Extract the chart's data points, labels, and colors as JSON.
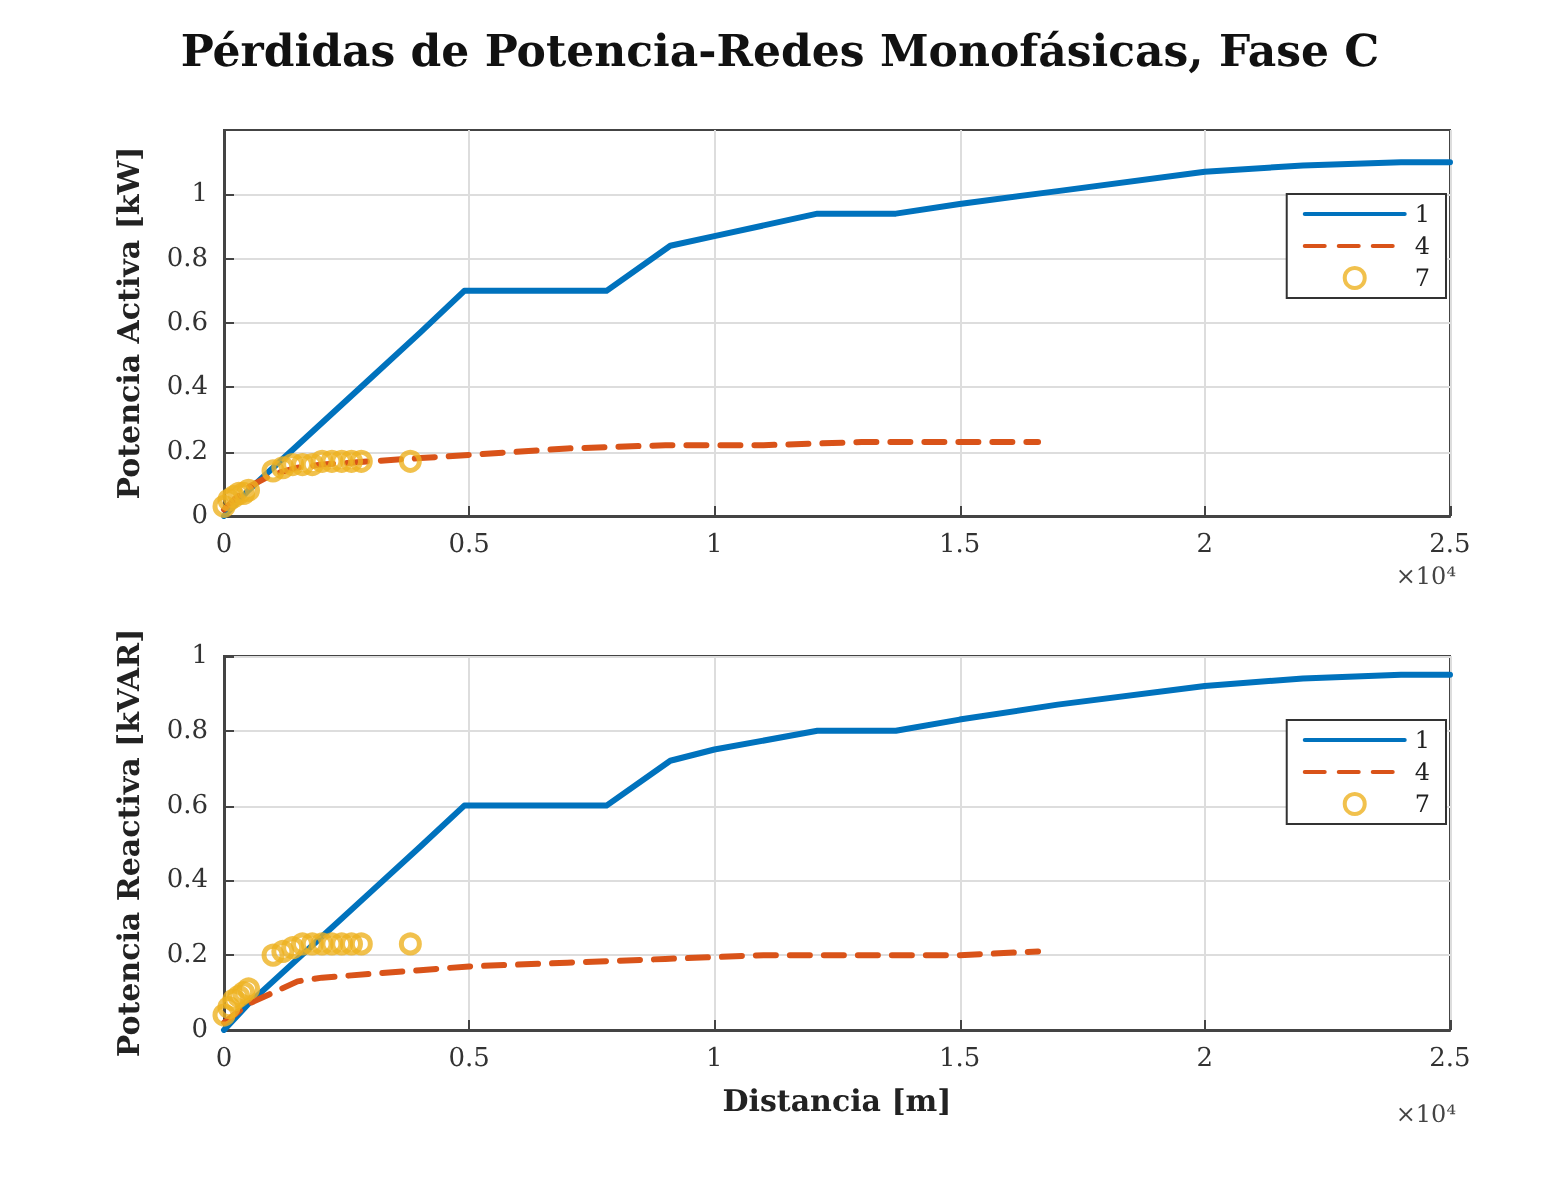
{
  "chart_data": [
    {
      "type": "line",
      "title": "Pérdidas de Potencia-Redes Monofásicas, Fase C",
      "ylabel": "Potencia Activa [kW]",
      "annotations": [
        "×10⁴"
      ],
      "xlim": [
        0,
        2.5
      ],
      "xticks": [
        0,
        0.5,
        1,
        1.5,
        2,
        2.5
      ],
      "ylim": [
        0,
        1.2
      ],
      "yticks": [
        0,
        0.2,
        0.4,
        0.6,
        0.8,
        1
      ],
      "grid": true,
      "legend": "top right",
      "series": [
        {
          "name": "1",
          "color": "#0072bd",
          "line_style": "solid",
          "x": [
            0,
            0.05,
            0.1,
            0.2,
            0.3,
            0.4,
            0.49,
            0.78,
            0.91,
            1,
            1.21,
            1.37,
            1.5,
            1.7,
            2,
            2.2,
            2.4,
            2.5
          ],
          "values": [
            0,
            0.08,
            0.15,
            0.29,
            0.43,
            0.57,
            0.7,
            0.7,
            0.84,
            0.87,
            0.94,
            0.94,
            0.97,
            1.01,
            1.07,
            1.09,
            1.1,
            1.1
          ]
        },
        {
          "name": "4",
          "color": "#d95319",
          "line_style": "dashed",
          "x": [
            0,
            0.02,
            0.05,
            0.1,
            0.15,
            0.2,
            0.3,
            0.4,
            0.5,
            0.7,
            0.9,
            1.1,
            1.3,
            1.5,
            1.66
          ],
          "values": [
            0.02,
            0.05,
            0.09,
            0.13,
            0.15,
            0.16,
            0.17,
            0.18,
            0.19,
            0.21,
            0.22,
            0.22,
            0.23,
            0.23,
            0.23
          ]
        },
        {
          "name": "7",
          "type": "scatter",
          "color": "#edb120",
          "marker": "circle",
          "x": [
            0,
            0.01,
            0.02,
            0.03,
            0.04,
            0.05,
            0.1,
            0.12,
            0.14,
            0.16,
            0.18,
            0.2,
            0.22,
            0.24,
            0.26,
            0.28,
            0.38
          ],
          "values": [
            0.03,
            0.05,
            0.06,
            0.07,
            0.07,
            0.08,
            0.14,
            0.15,
            0.16,
            0.16,
            0.16,
            0.17,
            0.17,
            0.17,
            0.17,
            0.17,
            0.17
          ]
        }
      ]
    },
    {
      "type": "line",
      "xlabel": "Distancia [m]",
      "ylabel": "Potencia Reactiva [kVAR]",
      "annotations": [
        "×10⁴"
      ],
      "xlim": [
        0,
        2.5
      ],
      "xticks": [
        0,
        0.5,
        1,
        1.5,
        2,
        2.5
      ],
      "ylim": [
        0,
        1
      ],
      "yticks": [
        0,
        0.2,
        0.4,
        0.6,
        0.8,
        1
      ],
      "grid": true,
      "legend": "top right",
      "series": [
        {
          "name": "1",
          "color": "#0072bd",
          "line_style": "solid",
          "x": [
            0,
            0.05,
            0.1,
            0.2,
            0.3,
            0.4,
            0.49,
            0.78,
            0.91,
            1,
            1.21,
            1.37,
            1.5,
            1.7,
            2,
            2.2,
            2.4,
            2.5
          ],
          "values": [
            0,
            0.07,
            0.13,
            0.25,
            0.37,
            0.49,
            0.6,
            0.6,
            0.72,
            0.75,
            0.8,
            0.8,
            0.83,
            0.87,
            0.92,
            0.94,
            0.95,
            0.95
          ]
        },
        {
          "name": "4",
          "color": "#d95319",
          "line_style": "dashed",
          "x": [
            0,
            0.02,
            0.05,
            0.1,
            0.15,
            0.2,
            0.3,
            0.4,
            0.5,
            0.7,
            0.9,
            1.1,
            1.3,
            1.5,
            1.66
          ],
          "values": [
            0.02,
            0.04,
            0.07,
            0.1,
            0.13,
            0.14,
            0.15,
            0.16,
            0.17,
            0.18,
            0.19,
            0.2,
            0.2,
            0.2,
            0.21
          ]
        },
        {
          "name": "7",
          "type": "scatter",
          "color": "#edb120",
          "marker": "circle",
          "x": [
            0,
            0.01,
            0.02,
            0.03,
            0.04,
            0.05,
            0.1,
            0.12,
            0.14,
            0.16,
            0.18,
            0.2,
            0.22,
            0.24,
            0.26,
            0.28,
            0.38
          ],
          "values": [
            0.04,
            0.06,
            0.08,
            0.09,
            0.1,
            0.11,
            0.2,
            0.21,
            0.22,
            0.23,
            0.23,
            0.23,
            0.23,
            0.23,
            0.23,
            0.23,
            0.23
          ]
        }
      ]
    }
  ]
}
